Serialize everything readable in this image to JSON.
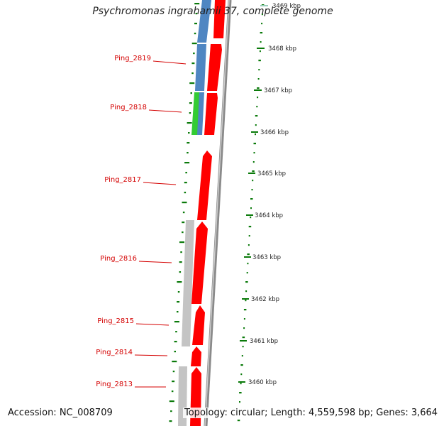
{
  "title": "Psychromonas ingrahamii 37, complete genome",
  "accession": "Accession: NC_008709",
  "summary": "Topology: circular; Length: 4,559,598 bp; Genes: 3,664",
  "colors": {
    "forward_gene": "#ff0000",
    "reverse_gene_blue": "#4f86c2",
    "reverse_gene_green": "#33cc33",
    "reverse_gene_gray": "#c4c4c4",
    "backbone": "#8a8a8a",
    "gc_dots": "#0a7a0a",
    "gene_label": "#d40000"
  },
  "kbp_ticks": [
    {
      "label": "3469 kbp"
    },
    {
      "label": "3468 kbp"
    },
    {
      "label": "3467 kbp"
    },
    {
      "label": "3466 kbp"
    },
    {
      "label": "3465 kbp"
    },
    {
      "label": "3464 kbp"
    },
    {
      "label": "3463 kbp"
    },
    {
      "label": "3462 kbp"
    },
    {
      "label": "3461 kbp"
    },
    {
      "label": "3460 kbp"
    }
  ],
  "genes": [
    {
      "name": "Ping_2819"
    },
    {
      "name": "Ping_2818"
    },
    {
      "name": "Ping_2817"
    },
    {
      "name": "Ping_2816"
    },
    {
      "name": "Ping_2815"
    },
    {
      "name": "Ping_2814"
    },
    {
      "name": "Ping_2813"
    }
  ]
}
